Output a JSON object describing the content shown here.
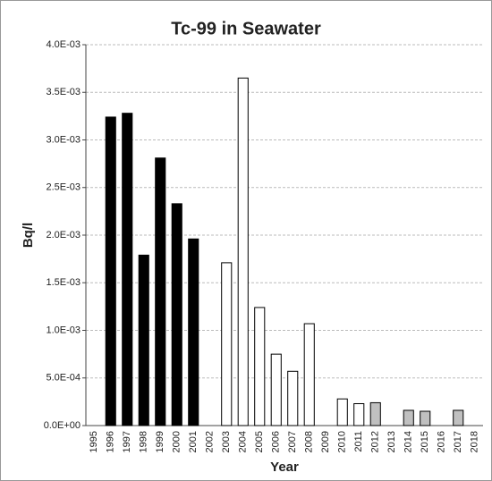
{
  "chart_data": {
    "type": "bar",
    "title": "Tc-99 in Seawater",
    "x_label": "Year",
    "y_label": "Bq/l",
    "categories": [
      "1995",
      "1996",
      "1997",
      "1998",
      "1999",
      "2000",
      "2001",
      "2002",
      "2003",
      "2004",
      "2005",
      "2006",
      "2007",
      "2008",
      "2009",
      "2010",
      "2011",
      "2012",
      "2013",
      "2014",
      "2015",
      "2016",
      "2017",
      "2018"
    ],
    "values": [
      null,
      0.00324,
      0.00328,
      0.00179,
      0.00281,
      0.00233,
      0.00196,
      null,
      0.00171,
      0.00365,
      0.00124,
      0.00075,
      0.00057,
      0.00107,
      null,
      0.00028,
      0.00023,
      0.00024,
      null,
      0.00016,
      0.00015,
      null,
      0.00016,
      null
    ],
    "colors": [
      null,
      "#000000",
      "#000000",
      "#000000",
      "#000000",
      "#000000",
      "#000000",
      null,
      "#ffffff",
      "#ffffff",
      "#ffffff",
      "#ffffff",
      "#ffffff",
      "#ffffff",
      null,
      "#ffffff",
      "#ffffff",
      "#c0c0c0",
      null,
      "#c0c0c0",
      "#c0c0c0",
      null,
      "#c0c0c0",
      null
    ],
    "ylim": [
      0,
      0.004
    ],
    "yticks": [
      {
        "value": 0,
        "label": "0.0E+00"
      },
      {
        "value": 0.0005,
        "label": "5.0E-04"
      },
      {
        "value": 0.001,
        "label": "1.0E-03"
      },
      {
        "value": 0.0015,
        "label": "1.5E-03"
      },
      {
        "value": 0.002,
        "label": "2.0E-03"
      },
      {
        "value": 0.0025,
        "label": "2.5E-03"
      },
      {
        "value": 0.003,
        "label": "3.0E-03"
      },
      {
        "value": 0.0035,
        "label": "3.5E-03"
      },
      {
        "value": 0.004,
        "label": "4.0E-03"
      }
    ],
    "grid": true
  }
}
